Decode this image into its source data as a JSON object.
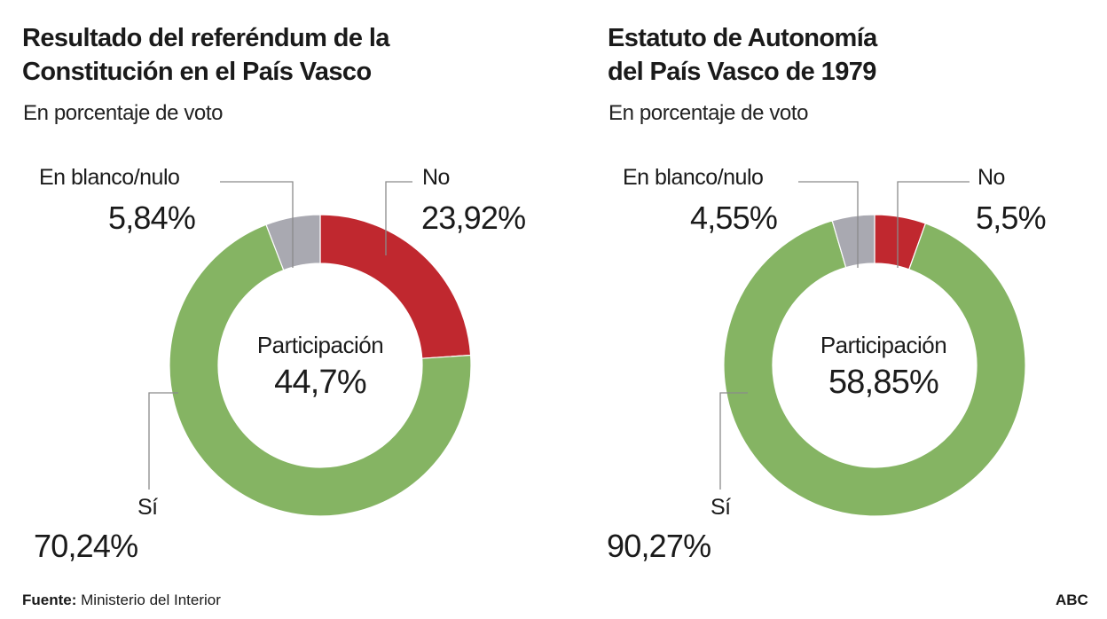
{
  "chart_data": [
    {
      "type": "pie",
      "donut": true,
      "title": "Resultado del referéndum de la Constitución en el País Vasco",
      "subtitle": "En porcentaje de voto",
      "center_label": "Participación",
      "center_value": "44,7%",
      "slices": [
        {
          "name": "No",
          "value": 23.92,
          "label": "No",
          "value_label": "23,92%",
          "color": "#c0282f"
        },
        {
          "name": "Sí",
          "value": 70.24,
          "label": "Sí",
          "value_label": "70,24%",
          "color": "#85b463"
        },
        {
          "name": "En blanco/nulo",
          "value": 5.84,
          "label": "En blanco/nulo",
          "value_label": "5,84%",
          "color": "#a9a9b1"
        }
      ]
    },
    {
      "type": "pie",
      "donut": true,
      "title": "Estatuto de Autonomía del País Vasco de 1979",
      "subtitle": "En porcentaje de voto",
      "center_label": "Participación",
      "center_value": "58,85%",
      "slices": [
        {
          "name": "No",
          "value": 5.5,
          "label": "No",
          "value_label": "5,5%",
          "color": "#c0282f"
        },
        {
          "name": "Sí",
          "value": 90.27,
          "label": "Sí",
          "value_label": "90,27%",
          "color": "#85b463"
        },
        {
          "name": "En blanco/nulo",
          "value": 4.55,
          "label": "En blanco/nulo",
          "value_label": "4,55%",
          "color": "#a9a9b1"
        }
      ]
    }
  ],
  "charts": [
    {
      "title_line1": "Resultado del referéndum de la",
      "title_line2": "Constitución en el País Vasco"
    },
    {
      "title_line1": "Estatuto de Autonomía",
      "title_line2": "del País Vasco de 1979"
    }
  ],
  "footer": {
    "source_label": "Fuente:",
    "source": "Ministerio del Interior",
    "brand": "ABC"
  }
}
